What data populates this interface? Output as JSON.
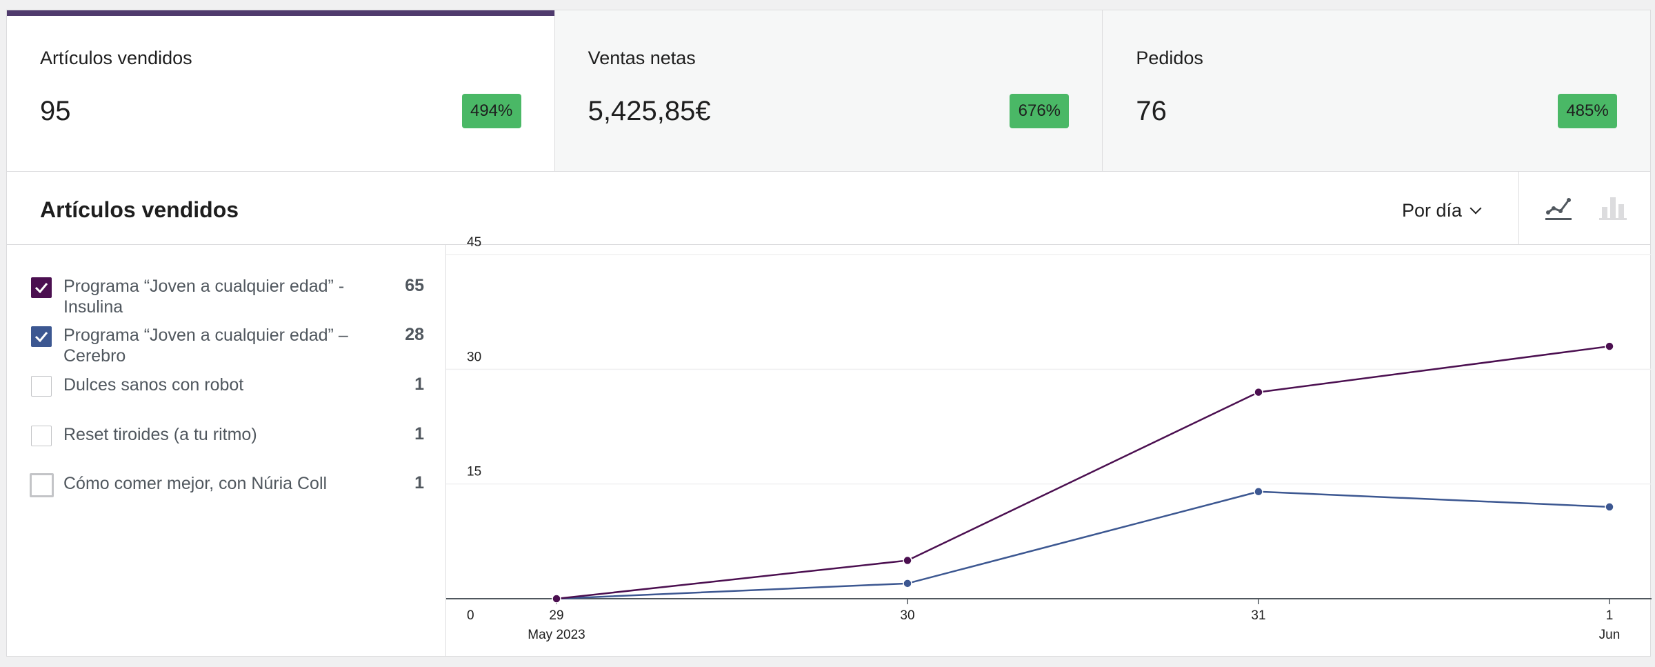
{
  "summary": {
    "cards": [
      {
        "label": "Artículos vendidos",
        "value": "95",
        "delta": "494%"
      },
      {
        "label": "Ventas netas",
        "value": "5,425,85€",
        "delta": "676%"
      },
      {
        "label": "Pedidos",
        "value": "76",
        "delta": "485%"
      }
    ],
    "selected_index": 0
  },
  "chart_header": {
    "title": "Artículos vendidos",
    "interval": "Por día",
    "chart_types": [
      "line-chart-icon",
      "bar-chart-icon"
    ],
    "active_type": "line"
  },
  "legend": {
    "items": [
      {
        "name": "Programa “Joven a cualquier edad” - Insulina",
        "count": "65",
        "checked": true,
        "color": "#4b0f50"
      },
      {
        "name": "Programa “Joven a cualquier edad” – Cerebro",
        "count": "28",
        "checked": true,
        "color": "#3c5791"
      },
      {
        "name": "Dulces sanos con robot",
        "count": "1",
        "checked": false
      },
      {
        "name": "Reset tiroides (a tu ritmo)",
        "count": "1",
        "checked": false
      },
      {
        "name": "Cómo comer mejor, con Núria Coll",
        "count": "1",
        "checked": false
      }
    ]
  },
  "chart_data": {
    "type": "line",
    "x": [
      "29",
      "30",
      "31",
      "1"
    ],
    "x_sublabels": [
      "May 2023",
      "",
      "",
      "Jun"
    ],
    "y_ticks": [
      "0",
      "15",
      "30",
      "45"
    ],
    "ylim": [
      0,
      45
    ],
    "grid": true,
    "series": [
      {
        "name": "Programa “Joven a cualquier edad” - Insulina",
        "color": "#4b0f50",
        "values": [
          0,
          5,
          27,
          33
        ]
      },
      {
        "name": "Programa “Joven a cualquier edad” – Cerebro",
        "color": "#3c5791",
        "values": [
          0,
          2,
          14,
          12
        ]
      }
    ]
  }
}
